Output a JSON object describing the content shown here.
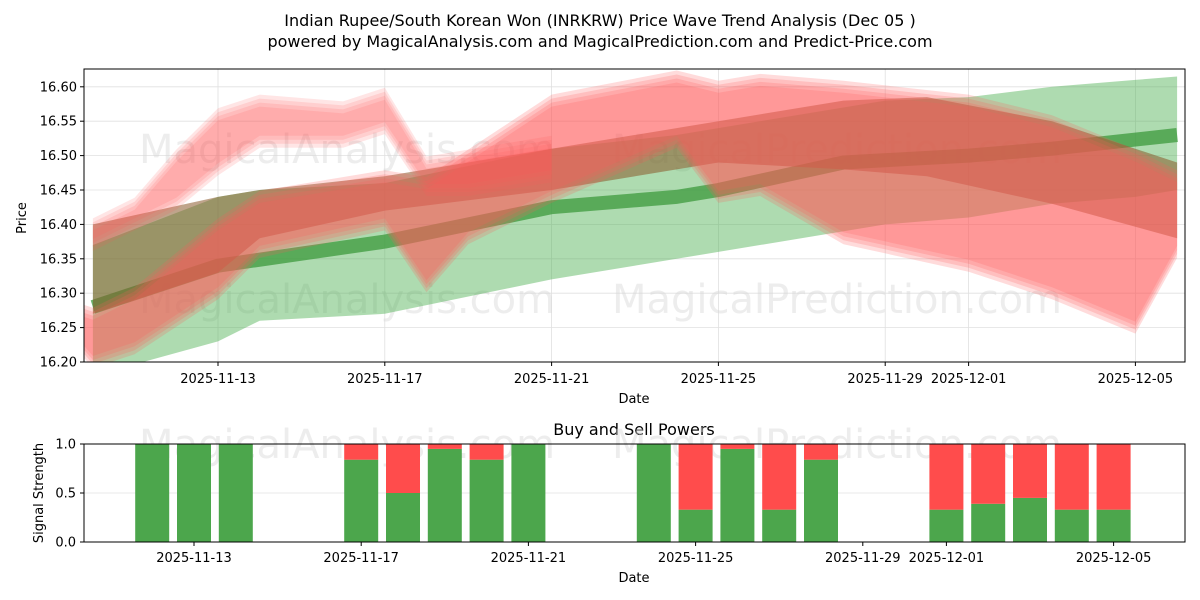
{
  "title": {
    "line1": "Indian Rupee/South Korean Won (INRKRW) Price Wave Trend Analysis (Dec 05 )",
    "line2": "powered by MagicalAnalysis.com and MagicalPrediction.com and Predict-Price.com"
  },
  "watermarks": [
    "MagicalAnalysis.com",
    "MagicalPrediction.com"
  ],
  "colors": {
    "buy": "#4ca64c",
    "sell": "#ff4c4c",
    "band_green": "#4caf50",
    "band_red": "#ff5a5a",
    "trend_green": "#3c9a3c",
    "trend_brown": "#8b5a2b"
  },
  "chart_data": [
    {
      "type": "area",
      "title": "Indian Rupee/South Korean Won (INRKRW) Price Wave Trend Analysis (Dec 05 )",
      "xlabel": "Date",
      "ylabel": "Price",
      "ylim": [
        16.2,
        16.625
      ],
      "xlim": [
        "2025-11-09",
        "2025-12-06"
      ],
      "grid": true,
      "x_ticks": [
        "2025-11-13",
        "2025-11-17",
        "2025-11-21",
        "2025-11-25",
        "2025-11-29",
        "2025-12-01",
        "2025-12-05"
      ],
      "y_ticks": [
        "16.20",
        "16.25",
        "16.30",
        "16.35",
        "16.40",
        "16.45",
        "16.50",
        "16.55",
        "16.60"
      ],
      "series": [
        {
          "name": "green-wide-band",
          "kind": "band",
          "color": "green",
          "opacity": 0.45,
          "x": [
            "2025-11-10",
            "2025-11-13",
            "2025-11-14",
            "2025-11-17",
            "2025-11-21",
            "2025-11-24",
            "2025-11-25",
            "2025-11-29",
            "2025-12-01",
            "2025-12-03",
            "2025-12-05",
            "2025-12-06"
          ],
          "upper": [
            16.37,
            16.44,
            16.45,
            16.46,
            16.51,
            16.53,
            16.54,
            16.58,
            16.585,
            16.6,
            16.61,
            16.615
          ],
          "lower": [
            16.18,
            16.23,
            16.26,
            16.27,
            16.32,
            16.35,
            16.36,
            16.4,
            16.41,
            16.43,
            16.44,
            16.45
          ]
        },
        {
          "name": "green-trend-line",
          "kind": "line",
          "color": "trend_green",
          "width": 14,
          "x": [
            "2025-11-10",
            "2025-11-13",
            "2025-11-17",
            "2025-11-21",
            "2025-11-24",
            "2025-11-25",
            "2025-11-28",
            "2025-12-01",
            "2025-12-03",
            "2025-12-06"
          ],
          "y": [
            16.28,
            16.34,
            16.375,
            16.425,
            16.44,
            16.45,
            16.49,
            16.5,
            16.51,
            16.53
          ]
        },
        {
          "name": "brown-trend-band",
          "kind": "band",
          "color": "brown",
          "opacity": 0.55,
          "x": [
            "2025-11-10",
            "2025-11-13",
            "2025-11-14",
            "2025-11-17",
            "2025-11-21",
            "2025-11-24",
            "2025-11-25",
            "2025-11-28",
            "2025-11-30",
            "2025-12-03",
            "2025-12-06"
          ],
          "upper": [
            16.4,
            16.44,
            16.45,
            16.47,
            16.51,
            16.54,
            16.55,
            16.58,
            16.585,
            16.55,
            16.49
          ],
          "lower": [
            16.27,
            16.33,
            16.38,
            16.42,
            16.45,
            16.48,
            16.49,
            16.48,
            16.47,
            16.43,
            16.38
          ]
        },
        {
          "name": "red-upper-wave",
          "kind": "band",
          "color": "red",
          "opacity": 0.25,
          "x": [
            "2025-11-10",
            "2025-11-11",
            "2025-11-12",
            "2025-11-13",
            "2025-11-14",
            "2025-11-16",
            "2025-11-17",
            "2025-11-18",
            "2025-11-19",
            "2025-11-21"
          ],
          "upper": [
            16.4,
            16.43,
            16.5,
            16.56,
            16.58,
            16.57,
            16.59,
            16.49,
            16.5,
            16.52
          ],
          "lower": [
            16.37,
            16.4,
            16.43,
            16.48,
            16.52,
            16.52,
            16.54,
            16.45,
            16.45,
            16.47
          ]
        },
        {
          "name": "red-main-wave",
          "kind": "band",
          "color": "red",
          "opacity": 0.35,
          "x": [
            "2025-11-09",
            "2025-11-10",
            "2025-11-11",
            "2025-11-13",
            "2025-11-14",
            "2025-11-17",
            "2025-11-18",
            "2025-11-19",
            "2025-11-21",
            "2025-11-24",
            "2025-11-25",
            "2025-11-26",
            "2025-11-28",
            "2025-12-01",
            "2025-12-03",
            "2025-12-05",
            "2025-12-06"
          ],
          "upper": [
            16.29,
            16.27,
            16.3,
            16.4,
            16.44,
            16.47,
            16.46,
            16.5,
            16.58,
            16.615,
            16.6,
            16.61,
            16.6,
            16.58,
            16.55,
            16.5,
            16.47
          ],
          "lower": [
            16.27,
            16.2,
            16.22,
            16.3,
            16.36,
            16.4,
            16.31,
            16.38,
            16.44,
            16.52,
            16.44,
            16.45,
            16.38,
            16.34,
            16.3,
            16.25,
            16.36
          ]
        }
      ]
    },
    {
      "type": "bar",
      "title": "Buy and Sell Powers",
      "xlabel": "Date",
      "ylabel": "Signal Strength",
      "ylim": [
        0.0,
        1.0
      ],
      "y_ticks": [
        "0.0",
        "0.5",
        "1.0"
      ],
      "x_ticks": [
        "2025-11-13",
        "2025-11-17",
        "2025-11-21",
        "2025-11-25",
        "2025-11-29",
        "2025-12-01",
        "2025-12-05"
      ],
      "stacked": true,
      "categories": [
        "2025-11-12",
        "2025-11-13",
        "2025-11-14",
        "2025-11-17",
        "2025-11-18",
        "2025-11-19",
        "2025-11-20",
        "2025-11-21",
        "2025-11-24",
        "2025-11-25",
        "2025-11-26",
        "2025-11-27",
        "2025-11-28",
        "2025-12-01",
        "2025-12-02",
        "2025-12-03",
        "2025-12-04",
        "2025-12-05"
      ],
      "series": [
        {
          "name": "Buy",
          "color": "#4ca64c",
          "values": [
            1.0,
            1.0,
            1.0,
            0.84,
            0.5,
            0.95,
            0.84,
            1.0,
            1.0,
            0.33,
            0.95,
            0.33,
            0.84,
            0.33,
            0.39,
            0.45,
            0.33,
            0.33
          ]
        },
        {
          "name": "Sell",
          "color": "#ff4c4c",
          "values": [
            0.0,
            0.0,
            0.0,
            0.16,
            0.5,
            0.05,
            0.16,
            0.0,
            0.0,
            0.67,
            0.05,
            0.67,
            0.16,
            0.67,
            0.61,
            0.55,
            0.67,
            0.67
          ]
        }
      ]
    }
  ]
}
